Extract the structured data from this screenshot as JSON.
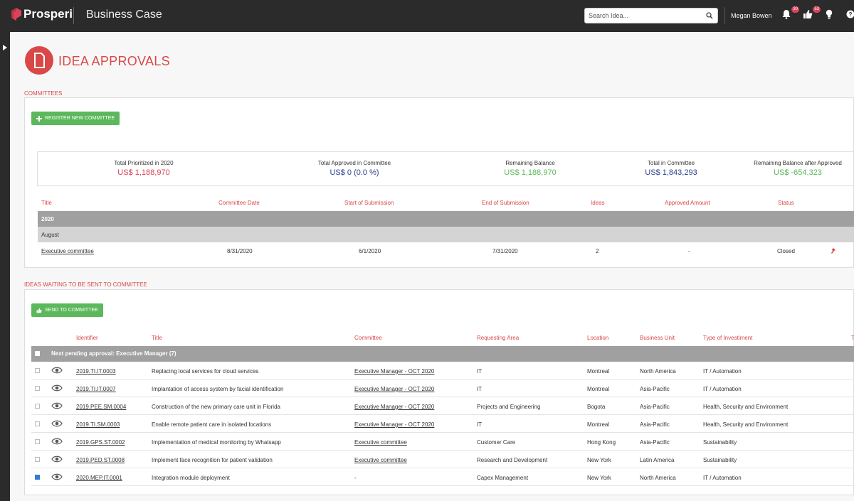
{
  "header": {
    "brand": "Prosperi",
    "app_title": "Business Case",
    "search_placeholder": "Search Idea...",
    "user": "Megan Bowen",
    "notifications_count": "30",
    "likes_count": "53"
  },
  "page": {
    "title": "IDEA APPROVALS"
  },
  "committees": {
    "section_label": "COMMITTEES",
    "register_button": "REGISTER NEW COMMITTEE",
    "summary": [
      {
        "label": "Total Prioritized in 2020",
        "value": "US$ 1,188,970",
        "color": "#d9435a"
      },
      {
        "label": "Total Approved in Committee",
        "value": "US$ 0 (0.0 %)",
        "color": "#2e3f8f"
      },
      {
        "label": "Remaining Balance",
        "value": "US$ 1,188,970",
        "color": "#5cb85c"
      },
      {
        "label": "Total in Committee",
        "value": "US$ 1,843,293",
        "color": "#2e3f8f"
      },
      {
        "label": "Remaining Balance after Approved",
        "value": "US$ -654,323",
        "color": "#5cb85c"
      }
    ],
    "columns": [
      "Title",
      "Committee Date",
      "Start of Submission",
      "End of Submission",
      "Ideas",
      "Approved Amount",
      "Status"
    ],
    "group_year": "2020",
    "group_month": "August",
    "rows": [
      {
        "title": "Executive committee",
        "date": "8/31/2020",
        "start": "6/1/2020",
        "end": "7/31/2020",
        "ideas": "2",
        "amount": "-",
        "status": "Closed"
      }
    ]
  },
  "ideas": {
    "section_label": "IDEAS WAITING TO BE SENT TO COMMITTEE",
    "send_button": "SEND TO COMMITTEE",
    "columns": [
      "Identifier",
      "Title",
      "Committee",
      "Requesting Area",
      "Location",
      "Business Unit",
      "Type of Investiment",
      "T"
    ],
    "group": "Next pending approval: Executive Manager (7)",
    "rows": [
      {
        "checked": false,
        "id": "2019.TI.IT.0003",
        "title": "Replacing local services for cloud services",
        "committee": "Executive Manager - OCT 2020",
        "area": "IT",
        "location": "Montreal",
        "unit": "North America",
        "type": "IT / Automation"
      },
      {
        "checked": false,
        "id": "2019.TI.IT.0007",
        "title": "Implantation of access system by facial identification",
        "committee": "Executive Manager - OCT 2020",
        "area": "IT",
        "location": "Montreal",
        "unit": "Asia-Pacific",
        "type": "IT / Automation"
      },
      {
        "checked": false,
        "id": "2019.PEE.SM.0004",
        "title": "Construction of the new primary care unit in Florida",
        "committee": "Executive Manager - OCT 2020",
        "area": "Projects and Engineering",
        "location": "Bogota",
        "unit": "Asia-Pacific",
        "type": "Health, Security and Environment"
      },
      {
        "checked": false,
        "id": "2019.TI.SM.0003",
        "title": "Enable remote patient care in isolated locations",
        "committee": "Executive Manager - OCT 2020",
        "area": "IT",
        "location": "Montreal",
        "unit": "Asia-Pacific",
        "type": "Health, Security and Environment"
      },
      {
        "checked": false,
        "id": "2019.GPS.ST.0002",
        "title": "Implementation of medical monitoring by Whatsapp",
        "committee": "Executive committee",
        "area": "Customer Care",
        "location": "Hong Kong",
        "unit": "Asia-Pacific",
        "type": "Sustainability"
      },
      {
        "checked": false,
        "id": "2019.PED.ST.0008",
        "title": "Implement face recognition for patient validation",
        "committee": "Executive committee",
        "area": "Research and Development",
        "location": "New York",
        "unit": "Latin America",
        "type": "Sustainability"
      },
      {
        "checked": true,
        "id": "2020.MEP.IT.0001",
        "title": "Integration module deployment",
        "committee": "-",
        "area": "Capex Management",
        "location": "New York",
        "unit": "North America",
        "type": "IT / Automation"
      }
    ]
  }
}
